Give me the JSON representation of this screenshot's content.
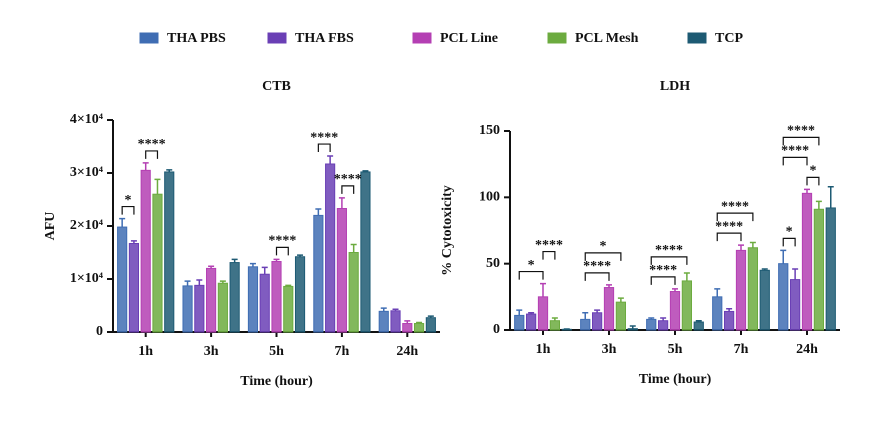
{
  "chart_data": [
    {
      "type": "bar",
      "title": "CTB",
      "x_label": "Time (hour)",
      "y_label": "AFU",
      "categories": [
        "1h",
        "3h",
        "5h",
        "7h",
        "24h"
      ],
      "series": [
        {
          "name": "THA PBS",
          "color": "#3f6db3",
          "values": [
            19800,
            8700,
            12300,
            22000,
            3900
          ],
          "errors": [
            1600,
            900,
            600,
            1200,
            600
          ]
        },
        {
          "name": "THA FBS",
          "color": "#6a3fb5",
          "values": [
            16700,
            8800,
            10900,
            31700,
            4000
          ],
          "errors": [
            500,
            1000,
            1300,
            1500,
            300
          ]
        },
        {
          "name": "PCL Line",
          "color": "#b43fb3",
          "values": [
            30500,
            12000,
            13300,
            23300,
            1600
          ],
          "errors": [
            1400,
            400,
            400,
            2000,
            500
          ]
        },
        {
          "name": "PCL Mesh",
          "color": "#6cab3f",
          "values": [
            26000,
            9200,
            8600,
            15000,
            1600
          ],
          "errors": [
            2800,
            400,
            200,
            1500,
            200
          ]
        },
        {
          "name": "TCP",
          "color": "#1d5a73",
          "values": [
            30200,
            13100,
            14200,
            30200,
            2700
          ],
          "errors": [
            400,
            600,
            300,
            200,
            300
          ]
        }
      ],
      "ylim": [
        0,
        40000
      ],
      "yticks": [
        0,
        {
          "value": 10000,
          "label": "1×10⁴"
        },
        {
          "value": 20000,
          "label": "2×10⁴"
        },
        {
          "value": 30000,
          "label": "3×10⁴"
        },
        {
          "value": 40000,
          "label": "4×10⁴"
        }
      ],
      "annotations": [
        {
          "text": "*",
          "category": 0,
          "series": [
            0,
            1
          ]
        },
        {
          "text": "****",
          "category": 0,
          "series": [
            2,
            3
          ]
        },
        {
          "text": "****",
          "category": 2,
          "series": [
            2,
            3
          ]
        },
        {
          "text": "****",
          "category": 3,
          "series": [
            0,
            1
          ]
        },
        {
          "text": "****",
          "category": 3,
          "series": [
            2,
            3
          ]
        }
      ]
    },
    {
      "type": "bar",
      "title": "LDH",
      "x_label": "Time (hour)",
      "y_label": "% Cytotoxicity",
      "categories": [
        "1h",
        "3h",
        "5h",
        "7h",
        "24h"
      ],
      "series": [
        {
          "name": "THA PBS",
          "color": "#3f6db3",
          "values": [
            11,
            8,
            8,
            25,
            50
          ],
          "errors": [
            4,
            5,
            1,
            6,
            10
          ]
        },
        {
          "name": "THA FBS",
          "color": "#6a3fb5",
          "values": [
            12,
            13,
            7,
            14,
            38
          ],
          "errors": [
            1,
            2,
            2,
            2,
            8
          ]
        },
        {
          "name": "PCL Line",
          "color": "#b43fb3",
          "values": [
            25,
            32,
            29,
            60,
            103
          ],
          "errors": [
            10,
            2,
            2,
            4,
            3
          ]
        },
        {
          "name": "PCL Mesh",
          "color": "#6cab3f",
          "values": [
            7,
            21,
            37,
            62,
            91
          ],
          "errors": [
            2,
            3,
            6,
            4,
            6
          ]
        },
        {
          "name": "TCP",
          "color": "#1d5a73",
          "values": [
            0.5,
            1,
            6,
            45,
            92
          ],
          "errors": [
            0.3,
            2,
            1,
            1,
            16
          ]
        }
      ],
      "ylim": [
        0,
        150
      ],
      "yticks": [
        0,
        50,
        100,
        150
      ],
      "annotations": [
        {
          "text": "*",
          "category": 0,
          "series": [
            0,
            2
          ]
        },
        {
          "text": "****",
          "category": 0,
          "series": [
            2,
            3
          ]
        },
        {
          "text": "****",
          "category": 1,
          "series": [
            0,
            2
          ]
        },
        {
          "text": "*",
          "category": 1,
          "series": [
            0,
            3
          ]
        },
        {
          "text": "****",
          "category": 2,
          "series": [
            0,
            2
          ]
        },
        {
          "text": "****",
          "category": 2,
          "series": [
            0,
            3
          ]
        },
        {
          "text": "****",
          "category": 3,
          "series": [
            0,
            2
          ]
        },
        {
          "text": "****",
          "category": 3,
          "series": [
            0,
            3
          ]
        },
        {
          "text": "*",
          "category": 4,
          "series": [
            0,
            1
          ]
        },
        {
          "text": "*",
          "category": 4,
          "series": [
            2,
            3
          ]
        },
        {
          "text": "****",
          "category": 4,
          "series": [
            0,
            2
          ]
        },
        {
          "text": "****",
          "category": 4,
          "series": [
            0,
            3
          ]
        }
      ]
    }
  ]
}
